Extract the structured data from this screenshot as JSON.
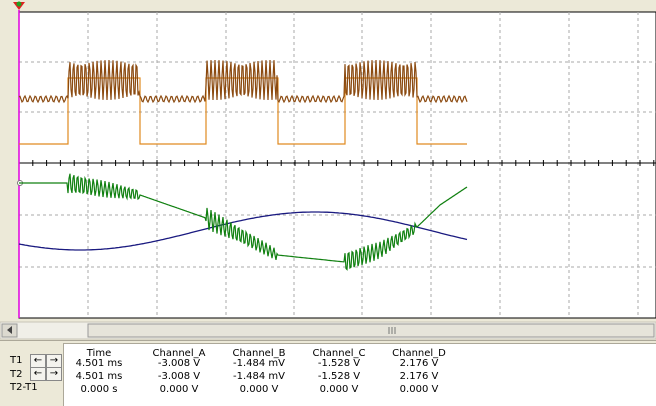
{
  "readout": {
    "headers": [
      "Time",
      "Channel_A",
      "Channel_B",
      "Channel_C",
      "Channel_D"
    ],
    "rows": [
      {
        "label": "T1",
        "cells": [
          "4.501 ms",
          "-3.008 V",
          "-1.484 mV",
          "-1.528 V",
          "2.176 V"
        ]
      },
      {
        "label": "T2",
        "cells": [
          "4.501 ms",
          "-3.008 V",
          "-1.484 mV",
          "-1.528 V",
          "2.176 V"
        ]
      },
      {
        "label": "T2-T1",
        "cells": [
          "0.000 s",
          "0.000 V",
          "0.000 V",
          "0.000 V",
          "0.000 V"
        ]
      }
    ]
  }
}
